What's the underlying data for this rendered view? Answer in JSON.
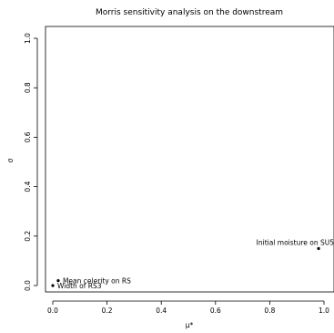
{
  "chart_data": {
    "type": "scatter",
    "title": "Morris sensitivity analysis on the downstream",
    "xlabel": "μ*",
    "ylabel": "σ",
    "xlim": [
      0,
      1
    ],
    "ylim": [
      0,
      1
    ],
    "xticks": [
      "0.0",
      "0.2",
      "0.4",
      "0.6",
      "0.8",
      "1.0"
    ],
    "yticks": [
      "0.0",
      "0.2",
      "0.4",
      "0.6",
      "0.8",
      "1.0"
    ],
    "grid": false,
    "points": [
      {
        "label": "Initial moisture on SU5",
        "x": 0.98,
        "y": 0.15
      },
      {
        "label": "Mean celerity on RS",
        "x": 0.02,
        "y": 0.02
      },
      {
        "label": "Width of RS3",
        "x": 0.0,
        "y": 0.0
      }
    ]
  }
}
